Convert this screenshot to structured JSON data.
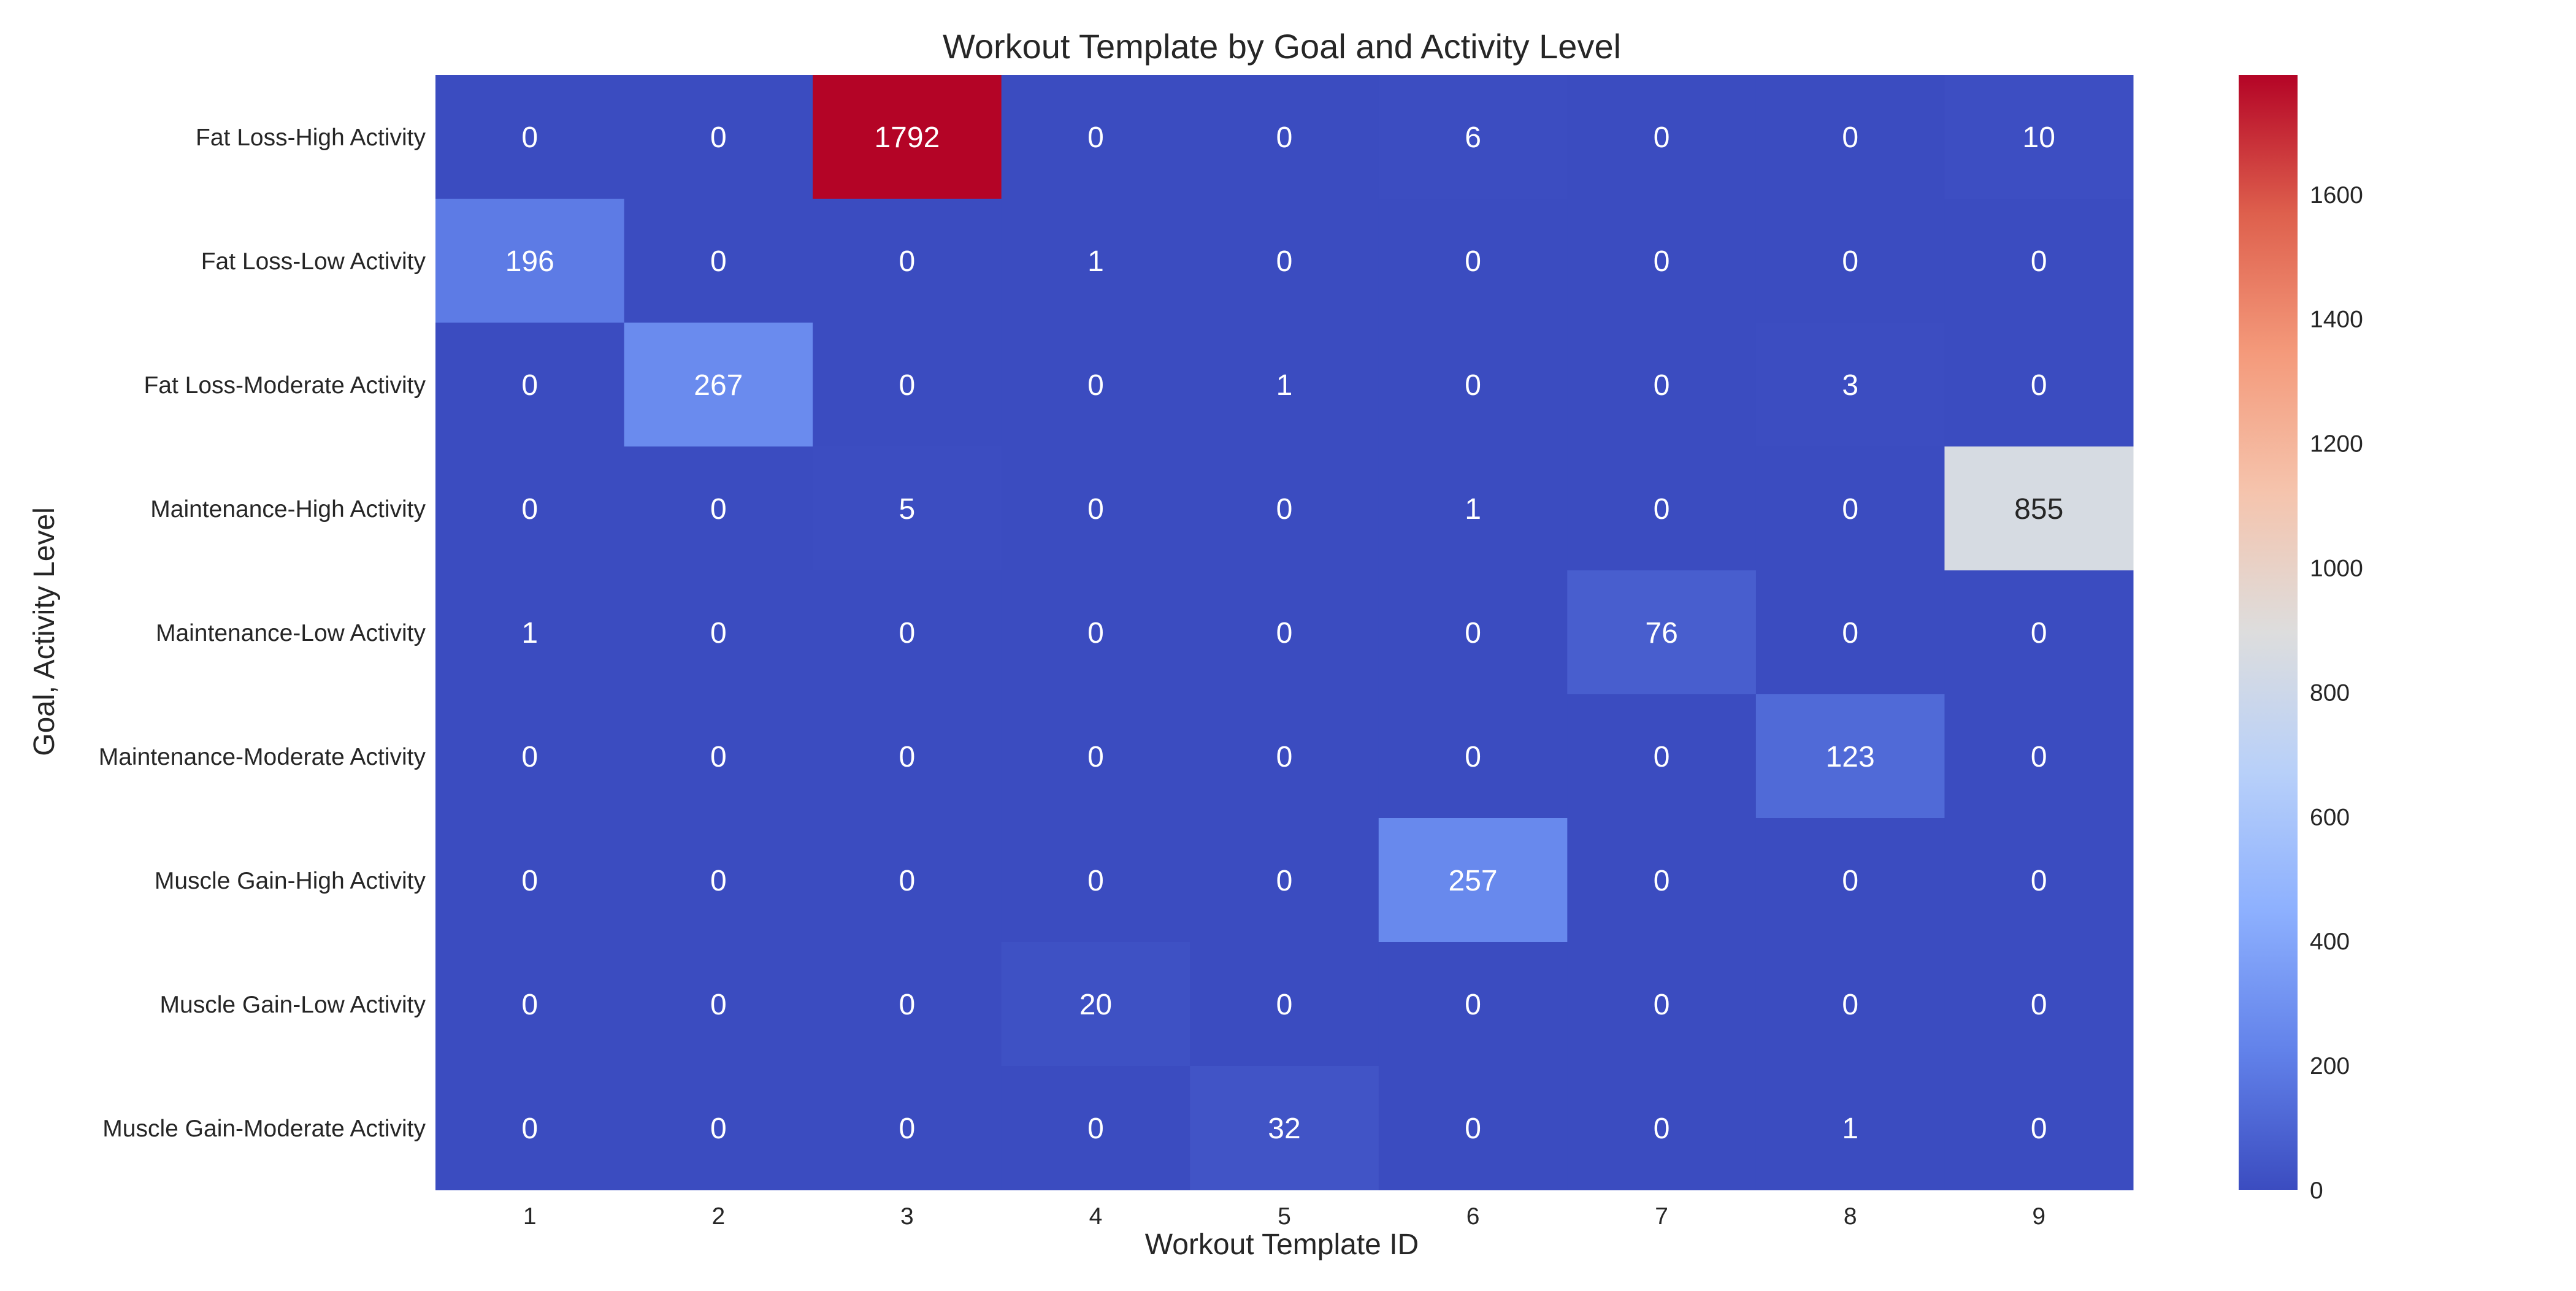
{
  "chart_data": {
    "type": "heatmap",
    "title": "Workout Template by Goal and Activity Level",
    "xlabel": "Workout Template ID",
    "ylabel": "Goal, Activity Level",
    "x_categories": [
      "1",
      "2",
      "3",
      "4",
      "5",
      "6",
      "7",
      "8",
      "9"
    ],
    "y_categories": [
      "Fat Loss-High Activity",
      "Fat Loss-Low Activity",
      "Fat Loss-Moderate Activity",
      "Maintenance-High Activity",
      "Maintenance-Low Activity",
      "Maintenance-Moderate Activity",
      "Muscle Gain-High Activity",
      "Muscle Gain-Low Activity",
      "Muscle Gain-Moderate Activity"
    ],
    "values": [
      [
        0,
        0,
        1792,
        0,
        0,
        6,
        0,
        0,
        10
      ],
      [
        196,
        0,
        0,
        1,
        0,
        0,
        0,
        0,
        0
      ],
      [
        0,
        267,
        0,
        0,
        1,
        0,
        0,
        3,
        0
      ],
      [
        0,
        0,
        5,
        0,
        0,
        1,
        0,
        0,
        855
      ],
      [
        1,
        0,
        0,
        0,
        0,
        0,
        76,
        0,
        0
      ],
      [
        0,
        0,
        0,
        0,
        0,
        0,
        0,
        123,
        0
      ],
      [
        0,
        0,
        0,
        0,
        0,
        257,
        0,
        0,
        0
      ],
      [
        0,
        0,
        0,
        20,
        0,
        0,
        0,
        0,
        0
      ],
      [
        0,
        0,
        0,
        0,
        32,
        0,
        0,
        1,
        0
      ]
    ],
    "colormap": "coolwarm",
    "colorbar": {
      "min": 0,
      "max": 1792,
      "ticks": [
        0,
        200,
        400,
        600,
        800,
        1000,
        1200,
        1400,
        1600
      ],
      "position": "right"
    },
    "annotations": true,
    "grid": false
  }
}
